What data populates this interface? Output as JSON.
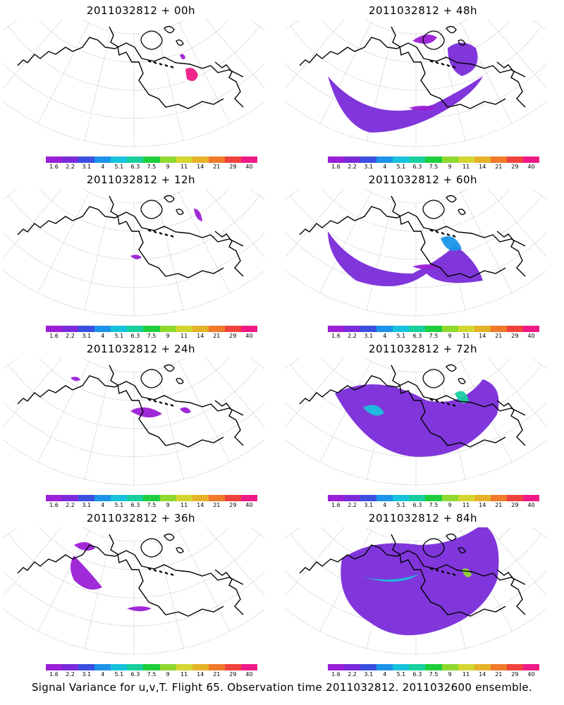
{
  "panels": [
    {
      "title": "2011032812 + 00h",
      "blobs": []
    },
    {
      "title": "2011032812 + 48h",
      "blobs": []
    },
    {
      "title": "2011032812 + 12h",
      "blobs": []
    },
    {
      "title": "2011032812 + 60h",
      "blobs": []
    },
    {
      "title": "2011032812 + 24h",
      "blobs": []
    },
    {
      "title": "2011032812 + 72h",
      "blobs": []
    },
    {
      "title": "2011032812 + 36h",
      "blobs": []
    },
    {
      "title": "2011032812 + 84h",
      "blobs": []
    }
  ],
  "colorbar": {
    "colors": [
      "#9b1fd6",
      "#7a2bd9",
      "#3a4fe0",
      "#1b93e8",
      "#18c1dc",
      "#19cf9f",
      "#1fce3c",
      "#8fd92e",
      "#d3d630",
      "#e6b22a",
      "#f07a2a",
      "#f0423c",
      "#ef1a86"
    ],
    "labels": [
      "1.6",
      "2.2",
      "3.1",
      "4",
      "5.1",
      "6.3",
      "7.5",
      "9",
      "11",
      "14",
      "21",
      "29",
      "40"
    ]
  },
  "caption": "Signal Variance for u,v,T. Flight 65. Observation time 2011032812. 2011032600 ensemble."
}
